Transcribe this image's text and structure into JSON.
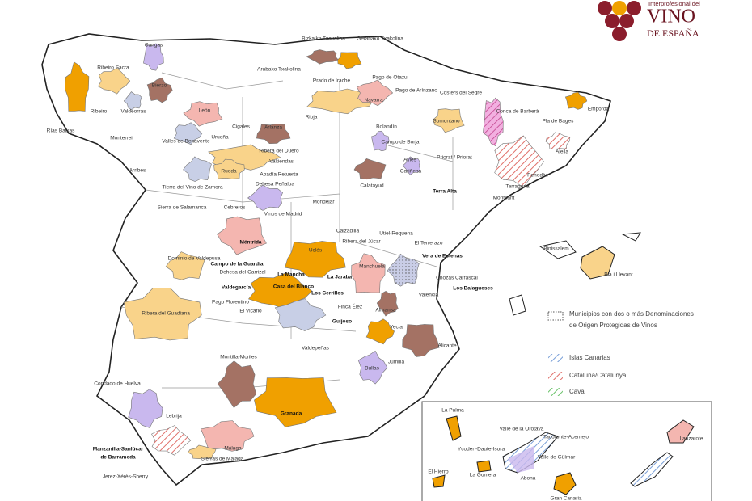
{
  "logo": {
    "top": "Interprofesional del",
    "main": "VINO",
    "sub": "DE ESPAÑA"
  },
  "regions": [
    "Cangas",
    "Ribeiro Sacra",
    "Bierzo",
    "Ribeiro",
    "Valdeorras",
    "Rías Baixas",
    "Monterrei",
    "León",
    "Cigales",
    "Arlanza",
    "Valles de Benavente",
    "Urueña",
    "Ribera del Duero",
    "Valtiendas",
    "Abadía Retuerta",
    "Rueda",
    "Dehesa Peñalba",
    "Arribes",
    "Tierra del Vino de Zamora",
    "Bizkaiko Txakolina",
    "Getariako Txakolina",
    "Arabako Txakolina",
    "Prado de Irache",
    "Pago de Otazu",
    "Pago de Arínzano",
    "Navarra",
    "Rioja",
    "Bolandín",
    "Campo de Borja",
    "Aylés",
    "Cariñena",
    "Calatayud",
    "Somontano",
    "Costers del Segre",
    "Conca de Barberà",
    "Empordà",
    "Pla de Bages",
    "Priorat / Priorat",
    "Alella",
    "Penedès",
    "Tarragona",
    "Montsant",
    "Terra Alta",
    "Sierra de Salamanca",
    "Cebreros",
    "Vinos de Madrid",
    "Mondéjar",
    "Uclés",
    "Méntrida",
    "Dominio de Valdepusa",
    "Campo de la Guardia",
    "Dehesa del Carrizal",
    "Valdegarcía",
    "La Mancha",
    "La Jaraba",
    "Casa del Blanco",
    "Los Cerrillos",
    "Pago Florentino",
    "El Vicario",
    "Finca Élez",
    "Guijoso",
    "Valdepeñas",
    "Calzadilla",
    "Ribera del Júcar",
    "Utiel-Requena",
    "El Terrerazo",
    "Vera de Estenas",
    "Manchuela",
    "Chozas Carrascal",
    "Los Balagueses",
    "Valencia",
    "Almansa",
    "Yecla",
    "Alicante",
    "Jumilla",
    "Bullas",
    "Ribera del Guadiana",
    "Montilla-Moriles",
    "Condado de Huelva",
    "Granada",
    "Lebrija",
    "Manzanilla-Sanlúcar",
    "de Barrameda",
    "Jerez-Xérès-Sherry",
    "Málaga",
    "Sierras de Málaga",
    "Binissalem",
    "Pla i Llevant"
  ],
  "legend": {
    "municipios": [
      "Municipios con dos o más Denominaciones",
      "de Origen Protegidas de Vinos"
    ],
    "items": [
      "Islas Canarias",
      "Cataluña/Catalunya",
      "Cava"
    ]
  },
  "canarias": [
    "La Palma",
    "Valle de la Orotava",
    "Tacoronte-Acentejo",
    "Ycoden-Daute-Isora",
    "Valle de Güímar",
    "Abona",
    "El Hierro",
    "La Gomera",
    "Gran Canaria",
    "Lanzarote"
  ]
}
